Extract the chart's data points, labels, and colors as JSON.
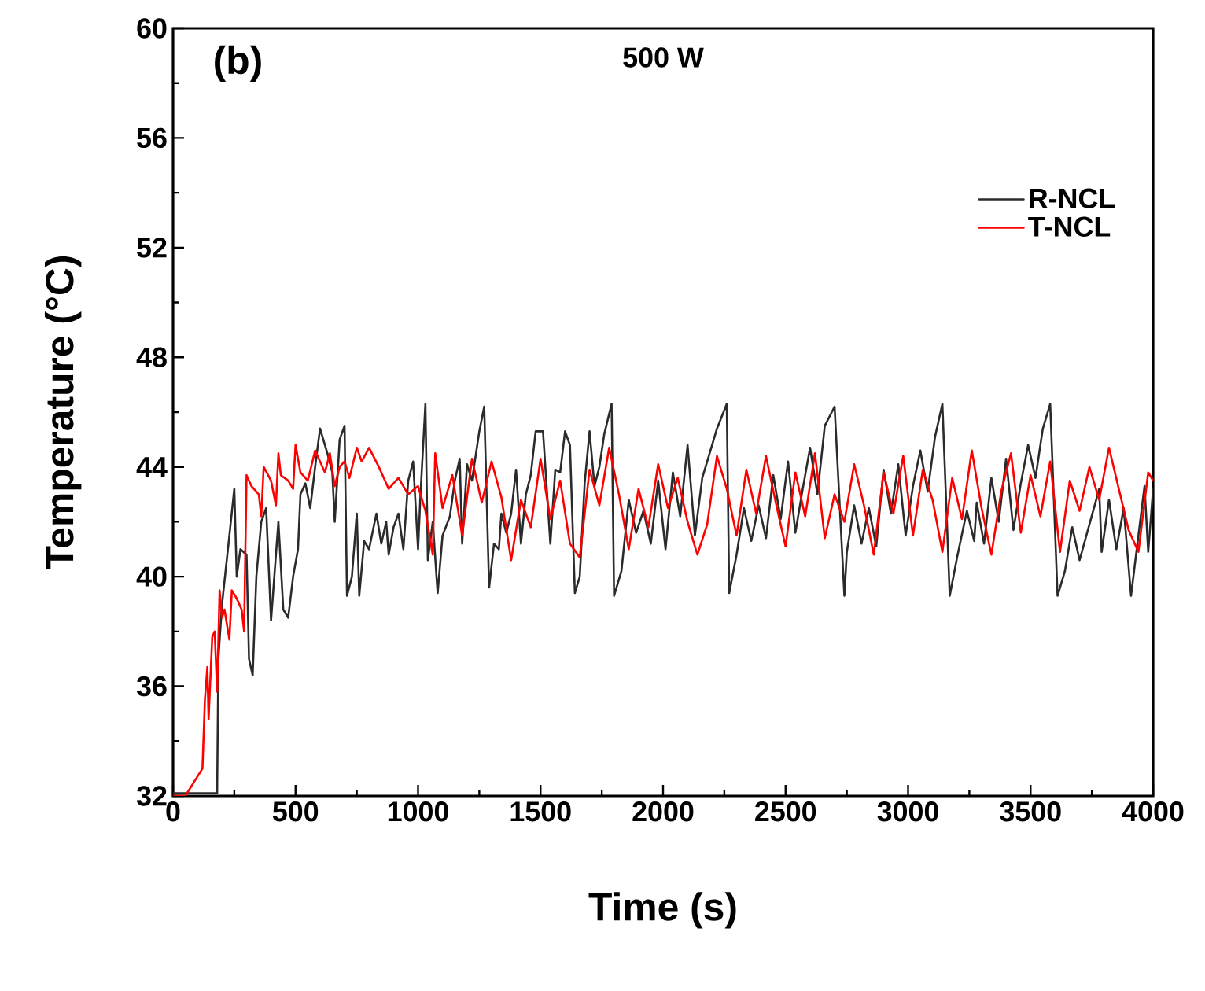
{
  "chart_data": {
    "type": "line",
    "title": "500 W",
    "xlabel": "Time (s)",
    "ylabel": "Temperature (°C)",
    "annotations": [
      "(b)"
    ],
    "xlim": [
      0,
      4000
    ],
    "ylim": [
      32,
      60
    ],
    "xticks": [
      0,
      500,
      1000,
      1500,
      2000,
      2500,
      3000,
      3500,
      4000
    ],
    "yticks": [
      32,
      36,
      40,
      44,
      48,
      52,
      56,
      60
    ],
    "legend": "top right",
    "grid": false,
    "series": [
      {
        "name": "R-NCL",
        "color": "#2b2b2b",
        "x": [
          0,
          180,
          185,
          200,
          230,
          250,
          260,
          275,
          300,
          310,
          325,
          340,
          360,
          380,
          400,
          430,
          450,
          470,
          490,
          510,
          520,
          540,
          560,
          580,
          600,
          630,
          650,
          660,
          680,
          700,
          710,
          730,
          750,
          760,
          780,
          800,
          830,
          850,
          870,
          880,
          900,
          920,
          940,
          960,
          980,
          1000,
          1010,
          1030,
          1040,
          1060,
          1080,
          1100,
          1130,
          1150,
          1170,
          1180,
          1200,
          1220,
          1250,
          1270,
          1290,
          1310,
          1330,
          1340,
          1360,
          1380,
          1400,
          1420,
          1440,
          1460,
          1480,
          1510,
          1540,
          1560,
          1580,
          1600,
          1620,
          1640,
          1660,
          1680,
          1700,
          1720,
          1740,
          1760,
          1790,
          1800,
          1830,
          1860,
          1890,
          1920,
          1950,
          1980,
          2010,
          2040,
          2070,
          2100,
          2130,
          2160,
          2190,
          2220,
          2260,
          2270,
          2300,
          2330,
          2360,
          2390,
          2420,
          2450,
          2480,
          2510,
          2540,
          2570,
          2600,
          2630,
          2660,
          2700,
          2740,
          2750,
          2780,
          2810,
          2840,
          2870,
          2900,
          2930,
          2960,
          2990,
          3020,
          3050,
          3080,
          3110,
          3140,
          3170,
          3200,
          3240,
          3270,
          3280,
          3310,
          3340,
          3370,
          3400,
          3430,
          3460,
          3490,
          3520,
          3550,
          3580,
          3610,
          3640,
          3670,
          3700,
          3740,
          3780,
          3790,
          3820,
          3850,
          3880,
          3910,
          3940,
          3965,
          3980,
          4000
        ],
        "values": [
          32.1,
          32.1,
          37,
          39,
          41.5,
          43.2,
          40,
          41,
          40.8,
          37,
          36.4,
          40,
          42,
          42.5,
          38.4,
          42,
          38.8,
          38.5,
          40,
          41,
          43,
          43.4,
          42.5,
          44,
          45.4,
          44.5,
          43.8,
          42,
          45,
          45.5,
          39.3,
          40,
          42.3,
          39.3,
          41.3,
          41,
          42.3,
          41.2,
          42,
          40.8,
          41.8,
          42.3,
          41,
          43.5,
          44.2,
          41,
          43,
          46.3,
          40.6,
          42,
          39.4,
          41.5,
          42.2,
          43.5,
          44.3,
          41.2,
          44.1,
          43.5,
          45.3,
          46.2,
          39.6,
          41.2,
          41,
          42.3,
          41.6,
          42.3,
          43.9,
          41.2,
          43,
          43.7,
          45.3,
          45.3,
          41.2,
          43.9,
          43.8,
          45.3,
          44.8,
          39.4,
          40,
          43.4,
          45.3,
          43.3,
          44,
          45.2,
          46.3,
          39.3,
          40.2,
          42.8,
          41.6,
          42.4,
          41.2,
          43.5,
          41,
          43.8,
          42.2,
          44.8,
          41.5,
          43.6,
          44.5,
          45.4,
          46.3,
          39.4,
          40.8,
          42.5,
          41.3,
          42.6,
          41.4,
          43.7,
          42.1,
          44.2,
          41.6,
          43.2,
          44.7,
          43,
          45.5,
          46.2,
          39.3,
          40.9,
          42.6,
          41.2,
          42.5,
          41.1,
          43.9,
          42.3,
          44.1,
          41.5,
          43.3,
          44.6,
          43.1,
          45.1,
          46.3,
          39.3,
          40.7,
          42.4,
          41.3,
          42.7,
          41.2,
          43.6,
          42,
          44.3,
          41.7,
          43.4,
          44.8,
          43.6,
          45.4,
          46.3,
          39.3,
          40.2,
          41.8,
          40.6,
          41.9,
          43.2,
          40.9,
          42.8,
          41,
          42.5,
          39.3,
          41.5,
          43.3,
          40.9,
          43.2
        ]
      },
      {
        "name": "T-NCL",
        "color": "#ff0000",
        "x": [
          0,
          50,
          120,
          130,
          140,
          145,
          160,
          170,
          180,
          190,
          200,
          210,
          230,
          240,
          260,
          280,
          290,
          300,
          320,
          350,
          360,
          370,
          400,
          420,
          430,
          440,
          470,
          490,
          500,
          520,
          550,
          580,
          600,
          620,
          640,
          660,
          680,
          700,
          720,
          750,
          770,
          800,
          840,
          880,
          920,
          960,
          1000,
          1030,
          1060,
          1070,
          1100,
          1140,
          1180,
          1220,
          1260,
          1300,
          1340,
          1380,
          1420,
          1460,
          1500,
          1540,
          1580,
          1620,
          1660,
          1700,
          1740,
          1780,
          1820,
          1860,
          1900,
          1940,
          1980,
          2020,
          2060,
          2100,
          2140,
          2180,
          2220,
          2260,
          2300,
          2340,
          2380,
          2420,
          2460,
          2500,
          2540,
          2580,
          2620,
          2660,
          2700,
          2740,
          2780,
          2820,
          2860,
          2900,
          2940,
          2980,
          3020,
          3060,
          3100,
          3140,
          3180,
          3220,
          3260,
          3300,
          3340,
          3380,
          3420,
          3460,
          3500,
          3540,
          3580,
          3620,
          3660,
          3700,
          3740,
          3780,
          3820,
          3860,
          3900,
          3940,
          3980,
          4000
        ],
        "values": [
          32,
          32,
          33,
          35.5,
          36.7,
          34.8,
          37.8,
          38,
          35.8,
          39.5,
          38.5,
          38.8,
          37.7,
          39.5,
          39.2,
          38.8,
          38,
          43.7,
          43.3,
          43,
          42.2,
          44,
          43.5,
          42.6,
          44.5,
          43.7,
          43.5,
          43.2,
          44.8,
          43.8,
          43.5,
          44.6,
          44.2,
          43.8,
          44.5,
          43.3,
          44,
          44.2,
          43.6,
          44.7,
          44.2,
          44.7,
          44,
          43.2,
          43.6,
          43,
          43.3,
          42.4,
          40.8,
          44.5,
          42.5,
          43.7,
          41.5,
          44.3,
          42.7,
          44.2,
          42.9,
          40.6,
          42.8,
          41.8,
          44.3,
          42.1,
          43.5,
          41.2,
          40.7,
          43.9,
          42.6,
          44.7,
          43,
          41,
          43.2,
          41.8,
          44.1,
          42.5,
          43.6,
          42,
          40.8,
          41.9,
          44.4,
          43.2,
          41.5,
          43.9,
          42.3,
          44.4,
          42.7,
          41.1,
          43.8,
          42.2,
          44.5,
          41.4,
          43,
          42,
          44.1,
          42.6,
          40.8,
          43.8,
          42.3,
          44.4,
          41.5,
          43.9,
          42.8,
          40.9,
          43.6,
          42.1,
          44.6,
          42.5,
          40.8,
          43.1,
          44.5,
          41.6,
          43.7,
          42.2,
          44.2,
          40.9,
          43.5,
          42.4,
          44,
          42.8,
          44.7,
          43.2,
          41.7,
          40.9,
          43.8,
          43.5
        ]
      }
    ]
  }
}
